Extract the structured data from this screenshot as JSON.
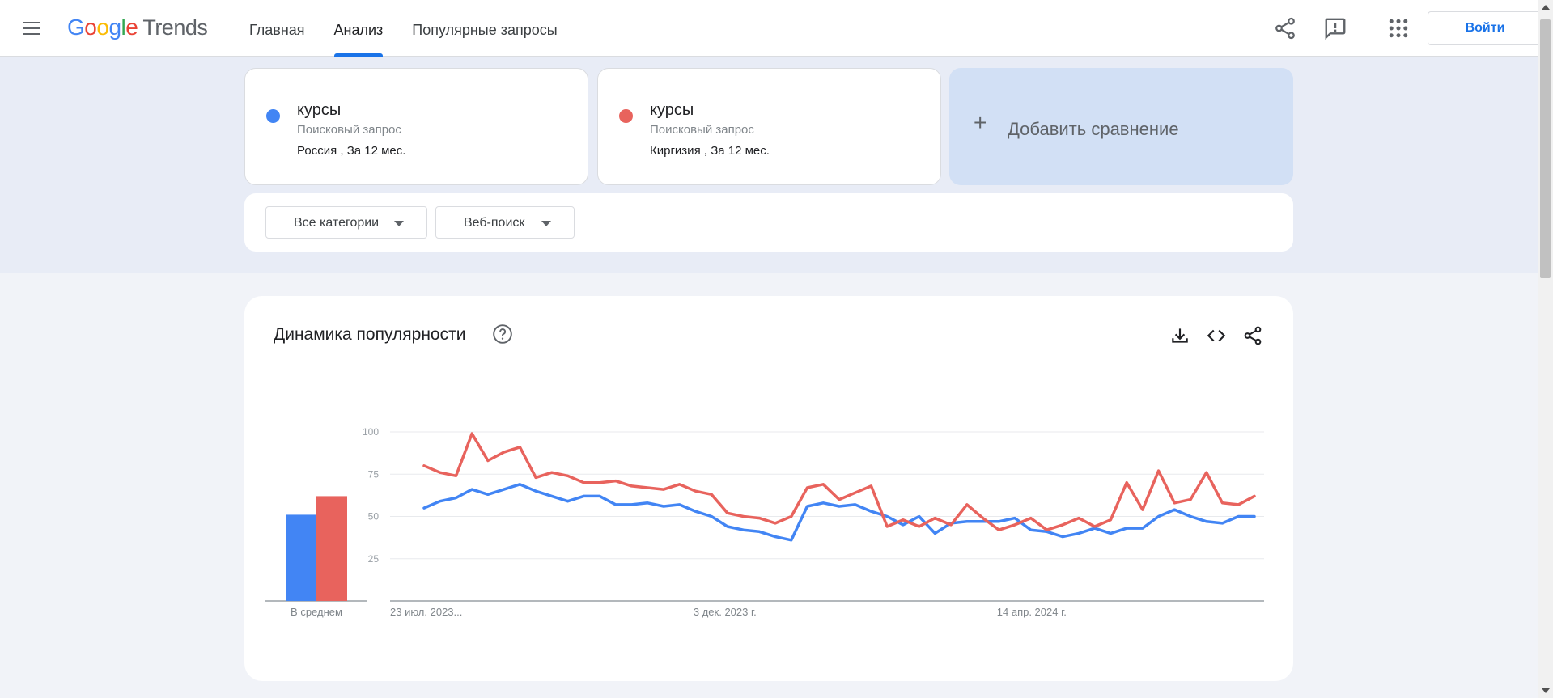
{
  "header": {
    "logo_google": "Google",
    "logo_trends": "Trends",
    "nav": [
      {
        "label": "Главная",
        "active": false
      },
      {
        "label": "Анализ",
        "active": true
      },
      {
        "label": "Популярные запросы",
        "active": false
      }
    ],
    "share_icon": "share-icon",
    "feedback_icon": "feedback-icon",
    "apps_icon": "apps-grid-icon",
    "login_label": "Войти"
  },
  "terms": [
    {
      "name": "курсы",
      "type": "Поисковый запрос",
      "location": "Россия , За 12 мес.",
      "color": "#4285f4"
    },
    {
      "name": "курсы",
      "type": "Поисковый запрос",
      "location": "Киргизия , За 12 мес.",
      "color": "#e8635d"
    }
  ],
  "add_compare": {
    "plus": "+",
    "label": "Добавить сравнение"
  },
  "filters": {
    "category": "Все категории",
    "search_type": "Веб-поиск"
  },
  "chart_card": {
    "title": "Динамика популярности",
    "help_icon": "help-circle-icon",
    "download_icon": "download-icon",
    "embed_icon": "code-embed-icon",
    "share_icon": "share-icon"
  },
  "chart_data": {
    "type": "line",
    "yticks": [
      "100",
      "75",
      "50",
      "25"
    ],
    "ylim": [
      0,
      100
    ],
    "grid": true,
    "x_labels": [
      {
        "label": "23 июл. 2023...",
        "index": 0
      },
      {
        "label": "3 дек. 2023 г.",
        "index": 19
      },
      {
        "label": "14 апр. 2024 г.",
        "index": 38
      }
    ],
    "average_label": "В среднем",
    "averages": [
      51,
      62
    ],
    "series": [
      {
        "color": "#4285f4",
        "values": [
          55,
          59,
          61,
          66,
          63,
          66,
          69,
          65,
          62,
          59,
          62,
          62,
          57,
          57,
          58,
          56,
          57,
          53,
          50,
          44,
          42,
          41,
          38,
          36,
          56,
          58,
          56,
          57,
          53,
          50,
          45,
          50,
          40,
          46,
          47,
          47,
          47,
          49,
          42,
          41,
          38,
          40,
          43,
          40,
          43,
          43,
          50,
          54,
          50,
          47,
          46,
          50,
          50
        ]
      },
      {
        "color": "#e8635d",
        "values": [
          80,
          76,
          74,
          99,
          83,
          88,
          91,
          73,
          76,
          74,
          70,
          70,
          71,
          68,
          67,
          66,
          69,
          65,
          63,
          52,
          50,
          49,
          46,
          50,
          67,
          69,
          60,
          64,
          68,
          44,
          48,
          44,
          49,
          45,
          57,
          49,
          42,
          45,
          49,
          42,
          45,
          49,
          44,
          48,
          70,
          54,
          77,
          58,
          60,
          76,
          58,
          57,
          62
        ]
      }
    ]
  }
}
